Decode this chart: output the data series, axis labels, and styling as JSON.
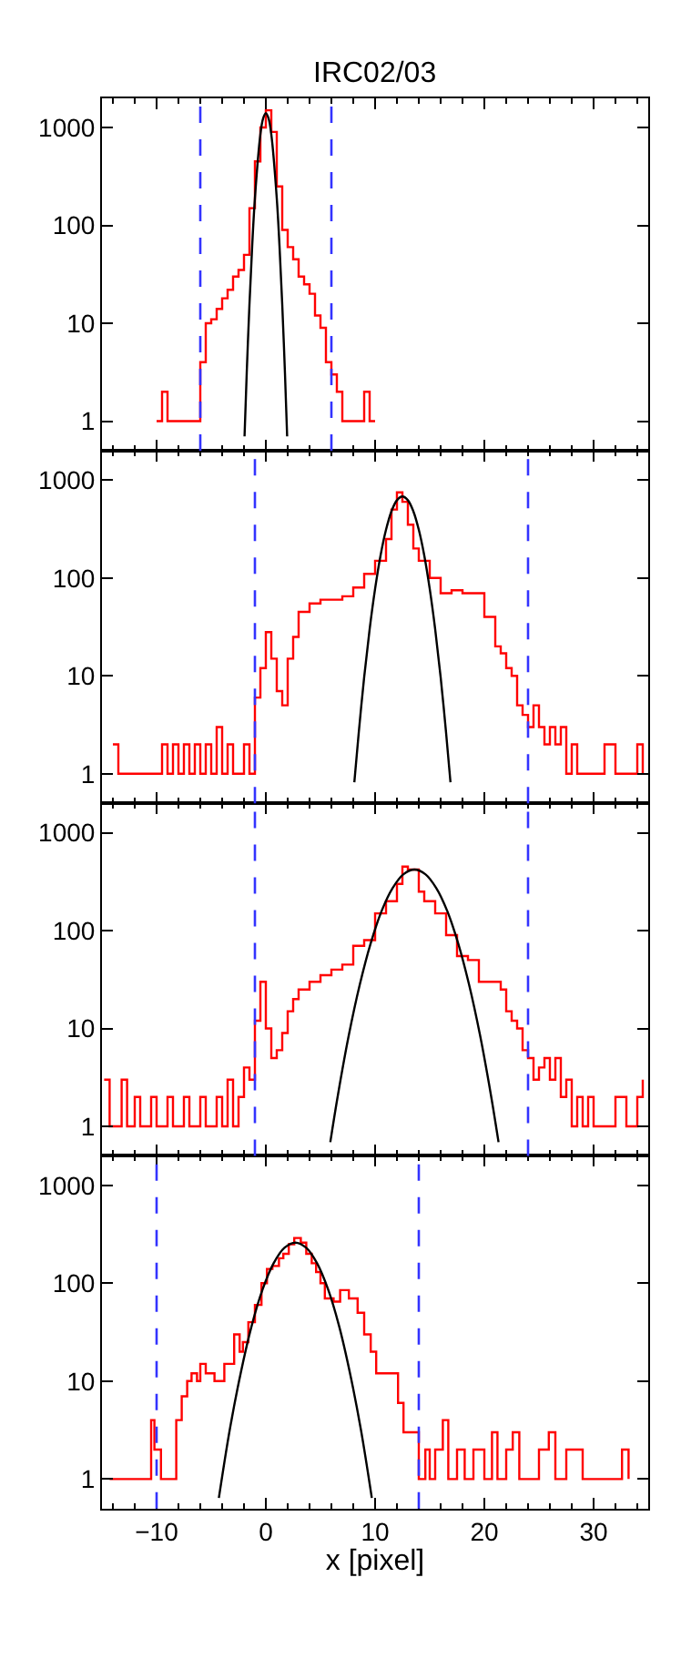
{
  "chart_data": [
    {
      "type": "step",
      "title": "IRC02/03",
      "xlim": [
        -15,
        35
      ],
      "xticks": [
        -10,
        0,
        10,
        20,
        30
      ],
      "ylim": [
        0.5,
        2000
      ],
      "yticks": [
        1,
        10,
        100,
        1000
      ],
      "log": "y",
      "tick_labels": "y",
      "ref_lines": [
        {
          "axis": "x",
          "value": -6,
          "color": "#3333ff",
          "line_style": "dashed"
        },
        {
          "axis": "x",
          "value": 6,
          "color": "#3333ff",
          "line_style": "dashed"
        }
      ],
      "series": [
        {
          "color": "#ff0000",
          "x": [
            -10,
            -9.5,
            -9,
            -8.5,
            -8,
            -7.5,
            -7,
            -6.5,
            -6,
            -5.5,
            -5,
            -4.5,
            -4,
            -3.5,
            -3,
            -2.5,
            -2,
            -1.5,
            -1,
            -0.5,
            0,
            0.5,
            1,
            1.5,
            2,
            2.5,
            3,
            3.5,
            4,
            4.5,
            5,
            5.5,
            6,
            6.5,
            7,
            7.5,
            8,
            8.5,
            9,
            9.5,
            10
          ],
          "values": [
            1,
            2,
            1,
            1,
            1,
            1,
            1,
            1,
            4,
            10,
            11,
            14,
            18,
            22,
            30,
            35,
            50,
            150,
            450,
            1000,
            1500,
            900,
            250,
            90,
            60,
            45,
            30,
            25,
            20,
            12,
            9,
            4,
            3,
            2,
            1,
            1,
            1,
            1,
            2,
            1,
            1
          ]
        },
        {
          "type": "line",
          "color": "#000000",
          "x": [
            -1.95,
            -1.75,
            -1.5,
            -1.25,
            -1,
            -0.5,
            -0.25,
            0,
            0.25,
            0.5,
            1,
            1.25,
            1.5,
            1.75,
            1.95
          ],
          "values": [
            0.7,
            3.1,
            15.6,
            61.6,
            189,
            849,
            1235,
            1400,
            1235,
            849,
            189,
            61.6,
            15.6,
            3.1,
            0.7
          ]
        }
      ]
    },
    {
      "type": "step",
      "xlim": [
        -15,
        35
      ],
      "xticks": [
        -10,
        0,
        10,
        20,
        30
      ],
      "ylim": [
        0.5,
        2000
      ],
      "yticks": [
        1,
        10,
        100,
        1000
      ],
      "log": "y",
      "tick_labels": "y",
      "ref_lines": [
        {
          "axis": "x",
          "value": -1,
          "color": "#3333ff",
          "line_style": "dashed"
        },
        {
          "axis": "x",
          "value": 24,
          "color": "#3333ff",
          "line_style": "dashed"
        }
      ],
      "series": [
        {
          "color": "#ff0000",
          "x": [
            -14,
            -13.5,
            -13,
            -12.5,
            -12,
            -11.5,
            -11,
            -10,
            -9.5,
            -9,
            -8.5,
            -8,
            -7.5,
            -7,
            -6.5,
            -6,
            -5.5,
            -5,
            -4.5,
            -4,
            -3.5,
            -3,
            -2.5,
            -2,
            -1.5,
            -1,
            -0.5,
            0,
            0.5,
            1,
            1.5,
            2,
            2.5,
            3,
            4,
            5,
            6,
            7,
            8,
            9,
            10,
            11,
            11.5,
            12,
            12.5,
            13,
            13.5,
            14,
            15,
            16,
            17,
            18,
            19,
            20,
            21,
            21.5,
            22,
            22.5,
            23,
            23.5,
            24,
            24.5,
            25,
            25.5,
            26,
            26.5,
            27,
            27.5,
            28,
            28.5,
            29,
            30,
            31,
            32,
            33,
            34,
            34.5
          ],
          "values": [
            2,
            1,
            1,
            1,
            1,
            1,
            1,
            1,
            2,
            1,
            2,
            1,
            2,
            1,
            2,
            1,
            2,
            1,
            3,
            1,
            2,
            1,
            1,
            2,
            1,
            6,
            12,
            28,
            15,
            7,
            5,
            15,
            25,
            45,
            55,
            60,
            60,
            65,
            80,
            110,
            150,
            250,
            500,
            750,
            600,
            350,
            200,
            150,
            100,
            70,
            75,
            70,
            70,
            40,
            20,
            17,
            12,
            10,
            5,
            4,
            3,
            5,
            3,
            2,
            3,
            2,
            3,
            1,
            2,
            1,
            1,
            1,
            2,
            1,
            1,
            2,
            1
          ]
        },
        {
          "type": "line",
          "color": "#000000",
          "x": [
            8.1,
            8.5,
            9,
            9.5,
            10,
            10.5,
            11,
            11.5,
            12,
            12.5,
            13,
            13.5,
            14,
            14.5,
            15,
            15.5,
            16,
            16.5,
            16.9
          ],
          "values": [
            0.82,
            2.6,
            9.7,
            29.9,
            77.5,
            170,
            311,
            481,
            623,
            680,
            623,
            481,
            311,
            170,
            77.5,
            29.9,
            9.7,
            2.6,
            0.82
          ]
        }
      ]
    },
    {
      "type": "step",
      "xlim": [
        -15,
        35
      ],
      "xticks": [
        -10,
        0,
        10,
        20,
        30
      ],
      "ylim": [
        0.5,
        2000
      ],
      "yticks": [
        1,
        10,
        100,
        1000
      ],
      "log": "y",
      "tick_labels": "y",
      "ref_lines": [
        {
          "axis": "x",
          "value": -1,
          "color": "#3333ff",
          "line_style": "dashed"
        },
        {
          "axis": "x",
          "value": 24,
          "color": "#3333ff",
          "line_style": "dashed"
        }
      ],
      "series": [
        {
          "color": "#ff0000",
          "x": [
            -14.8,
            -14.3,
            -13.8,
            -13.2,
            -12.7,
            -12,
            -11.5,
            -11,
            -10.5,
            -10,
            -9.5,
            -9,
            -8.5,
            -8,
            -7.5,
            -7,
            -6.5,
            -6,
            -5.5,
            -5,
            -4.5,
            -4,
            -3.5,
            -3,
            -2.5,
            -2,
            -1.5,
            -1,
            -0.5,
            0,
            0.5,
            1,
            1.5,
            2,
            2.5,
            3,
            3.5,
            4,
            5,
            6,
            7,
            8,
            9,
            10,
            11,
            12,
            12.5,
            13,
            14,
            14.5,
            15.5,
            16.5,
            17.5,
            18.5,
            19.5,
            20.5,
            21.5,
            22,
            22.5,
            23,
            23.5,
            24,
            24.5,
            25,
            25.5,
            26,
            26.5,
            27,
            27.5,
            28,
            28.5,
            29,
            29.5,
            30,
            31,
            32,
            33,
            34,
            34.5
          ],
          "values": [
            3,
            1,
            1,
            3,
            1,
            2,
            1,
            1,
            2,
            1,
            1,
            2,
            1,
            1,
            2,
            1,
            1,
            2,
            1,
            1,
            2,
            1,
            3,
            1,
            2,
            4,
            3,
            12,
            30,
            10,
            5,
            6,
            9,
            15,
            20,
            25,
            25,
            30,
            35,
            40,
            45,
            70,
            80,
            150,
            200,
            300,
            450,
            420,
            250,
            200,
            150,
            90,
            55,
            50,
            30,
            30,
            25,
            15,
            12,
            10,
            6,
            5,
            3,
            4,
            5,
            3,
            5,
            2,
            3,
            1,
            2,
            1,
            2,
            1,
            1,
            2,
            1,
            2,
            3
          ]
        },
        {
          "type": "line",
          "color": "#000000",
          "x": [
            5.9,
            6.6,
            7.6,
            8.6,
            9.6,
            10.6,
            11.6,
            12.6,
            13.6,
            14.6,
            15.6,
            16.6,
            17.6,
            18.6,
            19.6,
            20.6,
            21.3
          ],
          "values": [
            0.69,
            2.1,
            8.6,
            28.1,
            74.4,
            159,
            272,
            377,
            420,
            377,
            272,
            159,
            74.4,
            28.1,
            8.6,
            2.1,
            0.69
          ]
        }
      ]
    },
    {
      "type": "step",
      "xlabel": "x [pixel]",
      "xlim": [
        -15,
        35
      ],
      "xticks": [
        -10,
        0,
        10,
        20,
        30
      ],
      "ylim": [
        0.5,
        2000
      ],
      "yticks": [
        1,
        10,
        100,
        1000
      ],
      "log": "y",
      "ref_lines": [
        {
          "axis": "x",
          "value": -10,
          "color": "#3333ff",
          "line_style": "dashed"
        },
        {
          "axis": "x",
          "value": 14,
          "color": "#3333ff",
          "line_style": "dashed"
        }
      ],
      "series": [
        {
          "color": "#ff0000",
          "x": [
            -14.3,
            -13.8,
            -11.3,
            -10.5,
            -10.2,
            -9.6,
            -9,
            -8.5,
            -8.2,
            -7.7,
            -7.2,
            -6.8,
            -6.3,
            -6,
            -5.5,
            -5.2,
            -4.7,
            -4.3,
            -3.8,
            -3.5,
            -2.9,
            -2.4,
            -2.1,
            -1.6,
            -1,
            -0.4,
            0.1,
            0.6,
            1.2,
            1.6,
            2.1,
            2.6,
            3.2,
            3.7,
            4.2,
            4.6,
            5,
            5.4,
            6.2,
            6.8,
            7.6,
            8.4,
            9,
            9.6,
            10.1,
            11.2,
            12.1,
            12.6,
            13.4,
            14,
            14.6,
            15,
            15.5,
            16.2,
            16.7,
            17.5,
            18.2,
            19,
            20,
            20.7,
            21.2,
            22,
            22.6,
            23.2,
            24,
            25,
            25.9,
            26.5,
            27.5,
            29,
            30,
            31,
            32,
            32.6,
            33.2
          ],
          "values": [
            1,
            1,
            1,
            4,
            2,
            1,
            1,
            1,
            4,
            7,
            10,
            12,
            10,
            15,
            12,
            12,
            10,
            10,
            15,
            15,
            30,
            20,
            25,
            40,
            60,
            100,
            140,
            150,
            180,
            200,
            250,
            290,
            260,
            200,
            160,
            130,
            100,
            70,
            65,
            85,
            70,
            50,
            30,
            20,
            12,
            12,
            6,
            3,
            3,
            1,
            2,
            1,
            2,
            4,
            1,
            2,
            1,
            2,
            1,
            3,
            1,
            2,
            3,
            1,
            1,
            2,
            3,
            1,
            2,
            1,
            1,
            1,
            1,
            2,
            1
          ]
        },
        {
          "type": "line",
          "color": "#000000",
          "x": [
            -4.3,
            -3.3,
            -2.3,
            -1.3,
            -0.3,
            0.7,
            1.7,
            2.7,
            3.7,
            4.7,
            5.7,
            6.7,
            7.7,
            8.7,
            9.7
          ],
          "values": [
            0.64,
            3.2,
            12.1,
            36.7,
            86.3,
            159,
            230,
            260,
            230,
            159,
            86.3,
            36.7,
            12.1,
            3.2,
            0.64
          ]
        }
      ]
    }
  ]
}
